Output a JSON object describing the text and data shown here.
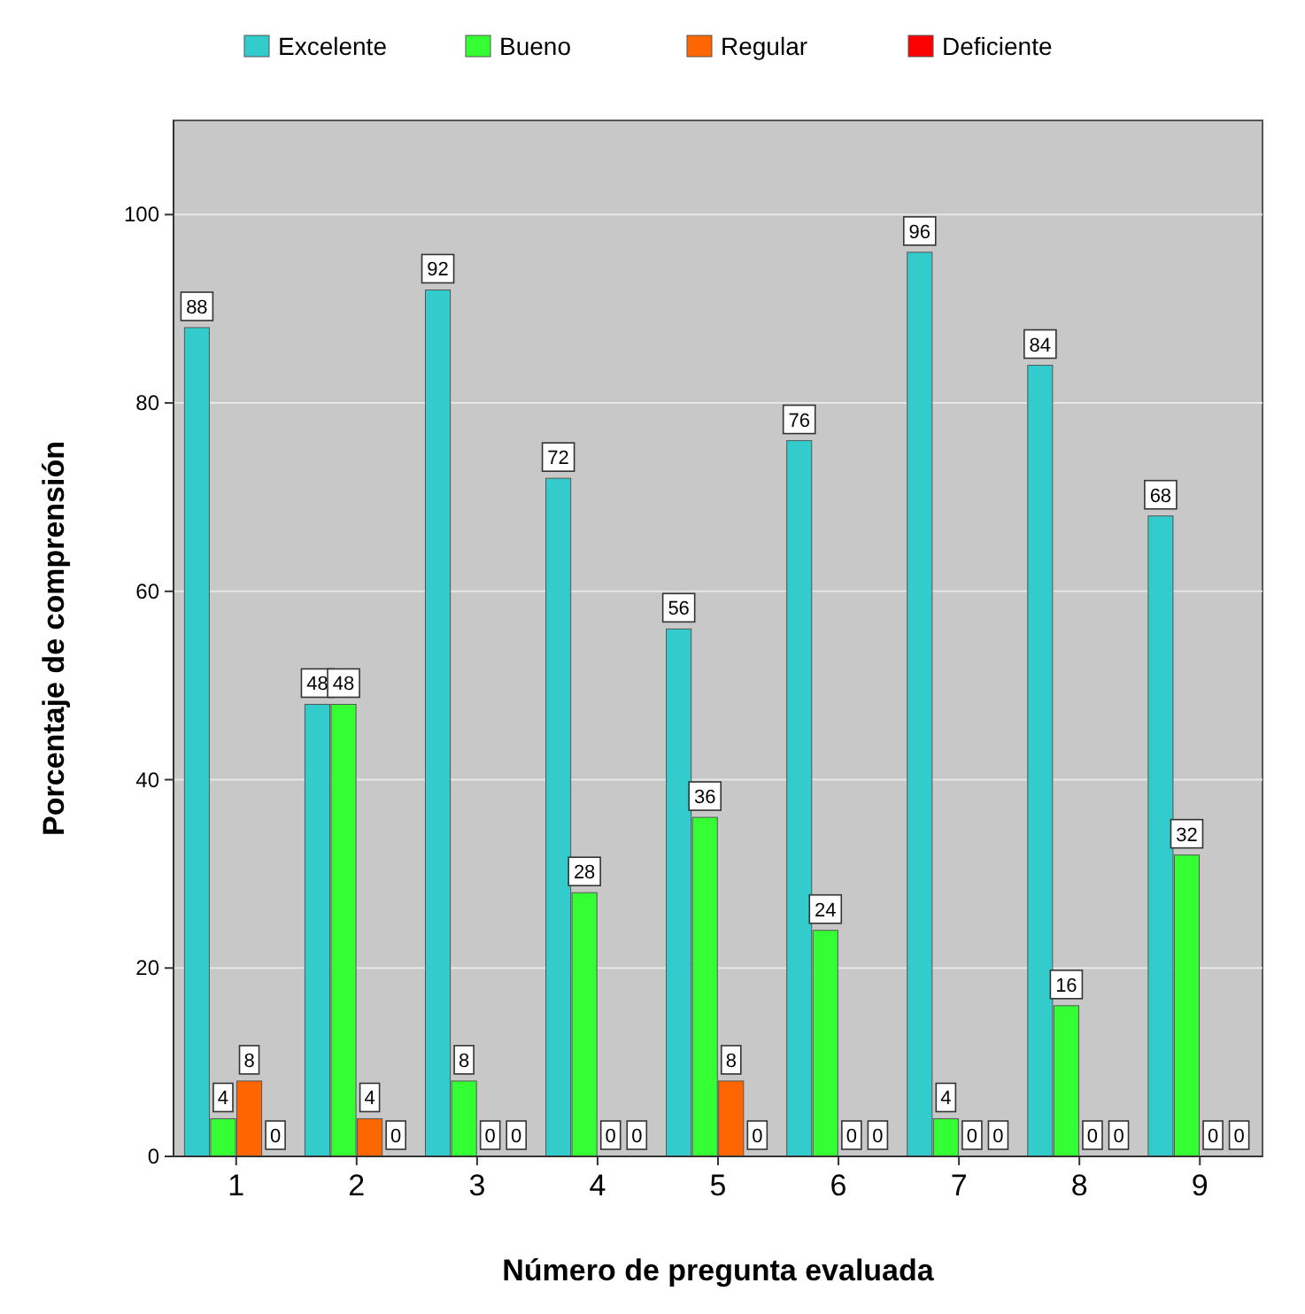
{
  "chart_data": {
    "type": "bar",
    "xlabel": "Número de pregunta evaluada",
    "ylabel": "Porcentaje de comprensión",
    "categories": [
      "1",
      "2",
      "3",
      "4",
      "5",
      "6",
      "7",
      "8",
      "9"
    ],
    "series": [
      {
        "name": "Excelente",
        "color": "#33cccc",
        "values": [
          88,
          48,
          92,
          72,
          56,
          76,
          96,
          84,
          68
        ]
      },
      {
        "name": "Bueno",
        "color": "#33ff33",
        "values": [
          4,
          48,
          8,
          28,
          36,
          24,
          4,
          16,
          32
        ]
      },
      {
        "name": "Regular",
        "color": "#ff6600",
        "values": [
          8,
          4,
          0,
          0,
          8,
          0,
          0,
          0,
          0
        ]
      },
      {
        "name": "Deficiente",
        "color": "#ff0000",
        "values": [
          0,
          0,
          0,
          0,
          0,
          0,
          0,
          0,
          0
        ]
      }
    ],
    "ylim": [
      0,
      110
    ],
    "yticks": [
      0,
      20,
      40,
      60,
      80,
      100
    ],
    "grid": "y",
    "legend": "top",
    "data_labels": true
  }
}
